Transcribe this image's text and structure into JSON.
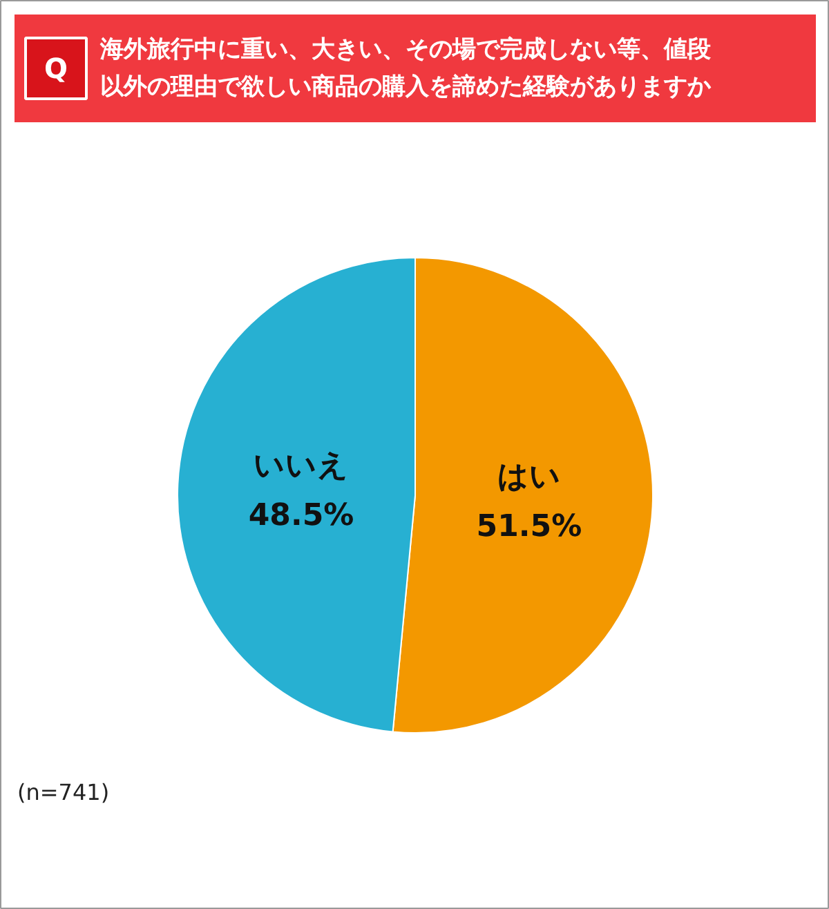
{
  "chart_data": {
    "type": "pie",
    "title": "海外旅行中に重い、大きい、その場で完成しない等、値段以外の理由で欲しい商品の購入を諦めた経験がありますか",
    "categories": [
      "はい",
      "いいえ"
    ],
    "values": [
      51.5,
      48.5
    ],
    "colors": [
      "#f39800",
      "#27b0d2"
    ],
    "value_labels": [
      "51.5%",
      "48.5%"
    ],
    "annotations": [
      "Q",
      "(n=741)"
    ]
  }
}
